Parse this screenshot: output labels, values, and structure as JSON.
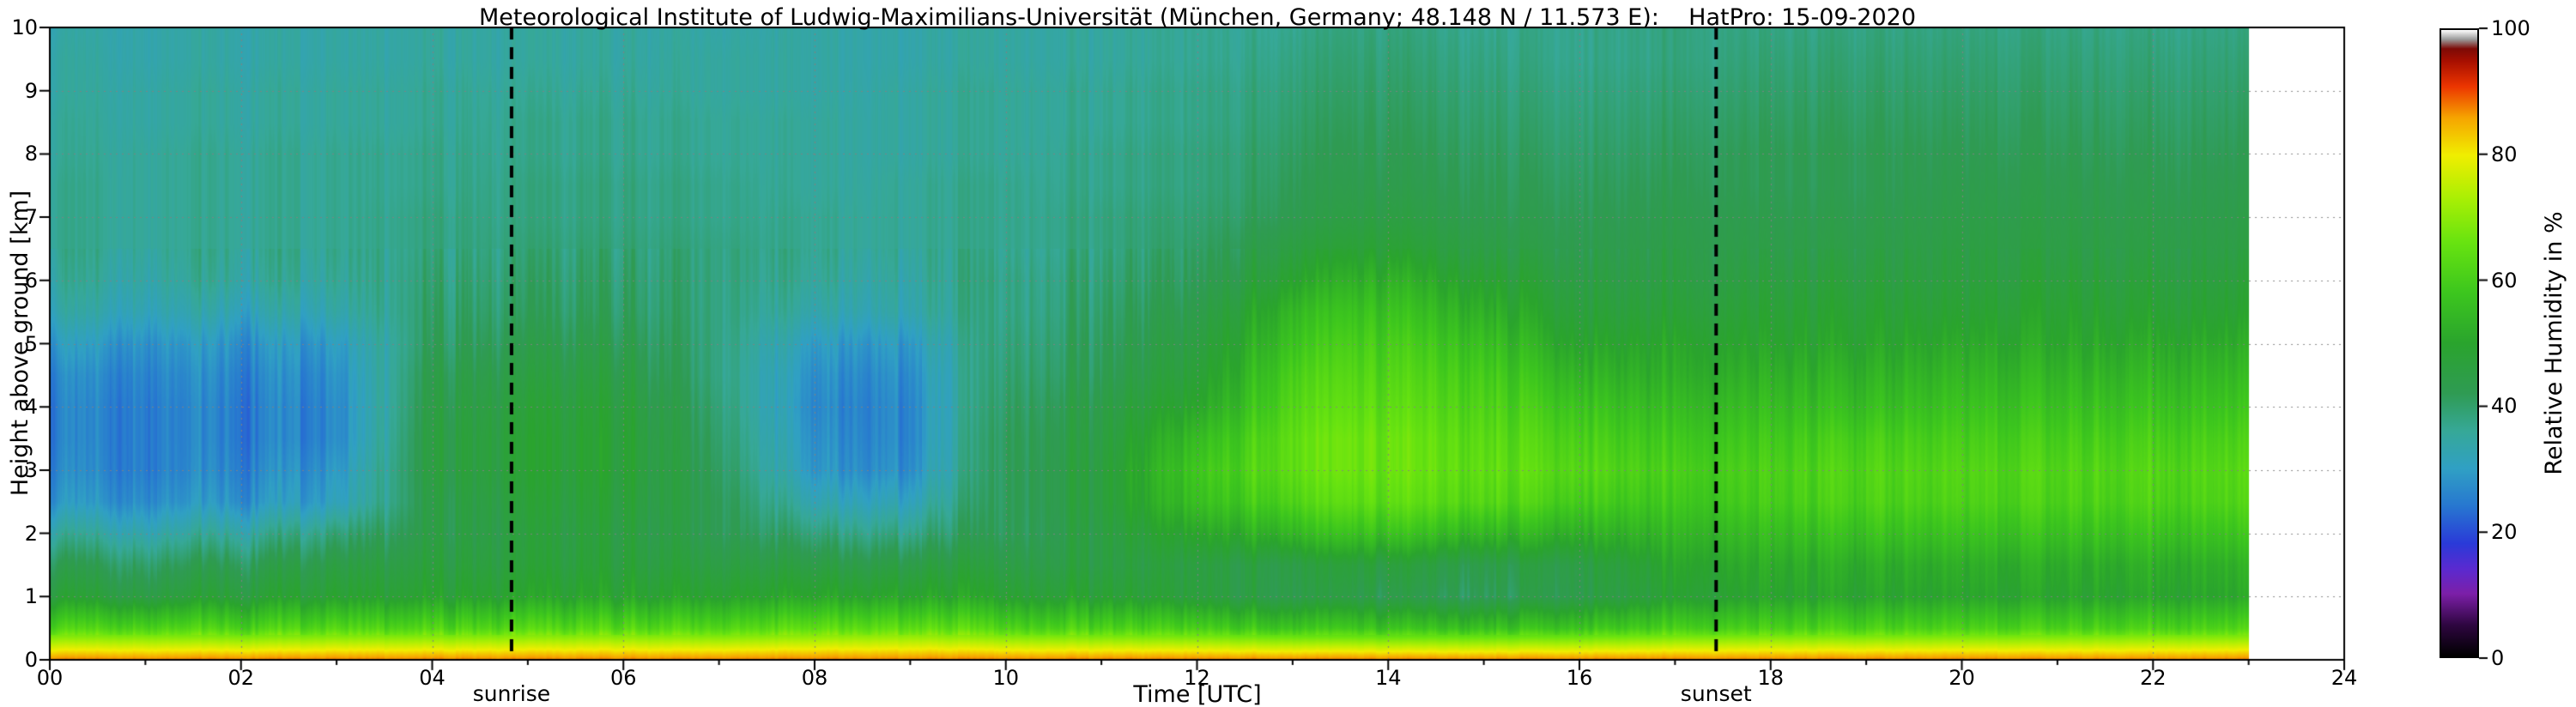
{
  "chart_data": {
    "type": "heatmap",
    "title": "Meteorological Institute of Ludwig-Maximilians-Universität (München, Germany; 48.148 N / 11.573 E):    HatPro: 15-09-2020",
    "xlabel": "Time [UTC]",
    "ylabel": "Height above ground [km]",
    "x_range": [
      0,
      24
    ],
    "y_range": [
      0,
      10
    ],
    "x_ticks": [
      0,
      2,
      4,
      6,
      8,
      10,
      12,
      14,
      16,
      18,
      20,
      22,
      24
    ],
    "x_tick_labels": [
      "00",
      "02",
      "04",
      "06",
      "08",
      "10",
      "12",
      "14",
      "16",
      "18",
      "20",
      "22",
      "24"
    ],
    "y_ticks": [
      0,
      1,
      2,
      3,
      4,
      5,
      6,
      7,
      8,
      9,
      10
    ],
    "y_tick_labels": [
      "0",
      "1",
      "2",
      "3",
      "4",
      "5",
      "6",
      "7",
      "8",
      "9",
      "10"
    ],
    "grid_lines": {
      "x_every": 2,
      "y_every": 1,
      "style": "dotted",
      "color": "#828282"
    },
    "data_end_time": 23,
    "annotations": {
      "sunrise": {
        "time": 4.83,
        "label": "sunrise",
        "style": "dashed",
        "color": "#000000"
      },
      "sunset": {
        "time": 17.43,
        "label": "sunset",
        "style": "dashed",
        "color": "#000000"
      }
    },
    "colorbar": {
      "label": "Relative Humidity in %",
      "range": [
        0,
        100
      ],
      "ticks": [
        0,
        20,
        40,
        60,
        80,
        100
      ],
      "stops": [
        {
          "v": 0,
          "color": "#000000"
        },
        {
          "v": 5,
          "color": "#2e0640"
        },
        {
          "v": 10,
          "color": "#7c1fa8"
        },
        {
          "v": 14,
          "color": "#5a2ad0"
        },
        {
          "v": 18,
          "color": "#2a3ad8"
        },
        {
          "v": 24,
          "color": "#2777d0"
        },
        {
          "v": 30,
          "color": "#30a0c4"
        },
        {
          "v": 36,
          "color": "#36a897"
        },
        {
          "v": 42,
          "color": "#2f9b53"
        },
        {
          "v": 50,
          "color": "#2aa42d"
        },
        {
          "v": 58,
          "color": "#3cc61e"
        },
        {
          "v": 66,
          "color": "#67e310"
        },
        {
          "v": 73,
          "color": "#a8ef04"
        },
        {
          "v": 80,
          "color": "#f0ee00"
        },
        {
          "v": 86,
          "color": "#f6a400"
        },
        {
          "v": 91,
          "color": "#ec3500"
        },
        {
          "v": 95,
          "color": "#a80f00"
        },
        {
          "v": 97,
          "color": "#7d0a06"
        },
        {
          "v": 98.5,
          "color": "#9a9a9a"
        },
        {
          "v": 100,
          "color": "#ffffff"
        }
      ]
    },
    "grid": {
      "times": [
        0,
        1,
        2,
        3,
        4,
        5,
        6,
        7,
        8,
        9,
        10,
        11,
        12,
        13,
        14,
        15,
        16,
        17,
        18,
        19,
        20,
        21,
        22,
        23
      ],
      "heights": [
        0,
        0.5,
        1,
        1.5,
        2,
        2.5,
        3,
        3.5,
        4,
        4.5,
        5,
        5.5,
        6,
        6.5,
        7,
        7.5,
        8,
        8.5,
        9,
        9.5,
        10
      ],
      "rh_values": [
        [
          88,
          88,
          88,
          88,
          88,
          88,
          88,
          88,
          88,
          88,
          88,
          88,
          88,
          88,
          88,
          88,
          88,
          88,
          88,
          88,
          88,
          88,
          88,
          88
        ],
        [
          62,
          62,
          61,
          62,
          62,
          63,
          63,
          62,
          64,
          65,
          62,
          61,
          60,
          58,
          57,
          57,
          58,
          60,
          61,
          61,
          61,
          61,
          62,
          62
        ],
        [
          48,
          46,
          47,
          48,
          49,
          50,
          50,
          49,
          50,
          51,
          49,
          48,
          46,
          44,
          43,
          42,
          44,
          48,
          50,
          50,
          50,
          50,
          51,
          51
        ],
        [
          43,
          41,
          42,
          44,
          46,
          47,
          47,
          45,
          44,
          45,
          45,
          45,
          45,
          45,
          46,
          44,
          45,
          50,
          52,
          52,
          52,
          52,
          53,
          53
        ],
        [
          36,
          34,
          35,
          38,
          44,
          46,
          46,
          42,
          38,
          38,
          42,
          45,
          50,
          55,
          57,
          55,
          53,
          54,
          56,
          57,
          57,
          57,
          58,
          58
        ],
        [
          29,
          28,
          28,
          30,
          44,
          47,
          47,
          42,
          32,
          32,
          42,
          46,
          56,
          62,
          64,
          63,
          60,
          58,
          60,
          61,
          61,
          61,
          62,
          62
        ],
        [
          27,
          26,
          26,
          28,
          45,
          48,
          48,
          41,
          28,
          28,
          42,
          46,
          58,
          65,
          66,
          65,
          63,
          60,
          61,
          62,
          62,
          62,
          63,
          63
        ],
        [
          26,
          26,
          25,
          26,
          45,
          48,
          48,
          40,
          27,
          27,
          42,
          45,
          55,
          65,
          66,
          64,
          61,
          58,
          59,
          60,
          60,
          60,
          61,
          61
        ],
        [
          26,
          26,
          25,
          26,
          44,
          47,
          47,
          39,
          26,
          27,
          41,
          44,
          50,
          63,
          64,
          62,
          58,
          55,
          56,
          56,
          57,
          57,
          58,
          58
        ],
        [
          27,
          27,
          26,
          27,
          43,
          45,
          45,
          38,
          27,
          28,
          40,
          42,
          47,
          61,
          62,
          60,
          54,
          52,
          53,
          53,
          54,
          54,
          55,
          55
        ],
        [
          30,
          29,
          28,
          29,
          41,
          43,
          43,
          38,
          29,
          30,
          39,
          41,
          45,
          58,
          60,
          57,
          50,
          50,
          50,
          50,
          51,
          51,
          52,
          52
        ],
        [
          34,
          33,
          32,
          33,
          40,
          41,
          41,
          38,
          33,
          34,
          38,
          40,
          43,
          55,
          57,
          53,
          47,
          47,
          48,
          48,
          48,
          49,
          49,
          49
        ],
        [
          36,
          35,
          35,
          35,
          39,
          40,
          40,
          38,
          35,
          35,
          38,
          39,
          41,
          50,
          53,
          49,
          45,
          45,
          46,
          46,
          46,
          47,
          47,
          47
        ],
        [
          37,
          36,
          36,
          36,
          38,
          39,
          39,
          38,
          36,
          36,
          37,
          38,
          40,
          46,
          48,
          45,
          43,
          44,
          44,
          44,
          45,
          45,
          45,
          45
        ],
        [
          37,
          36,
          36,
          36,
          38,
          38,
          38,
          37,
          36,
          36,
          37,
          38,
          39,
          43,
          45,
          43,
          42,
          43,
          43,
          43,
          44,
          44,
          44,
          44
        ],
        [
          37,
          36,
          36,
          36,
          37,
          38,
          38,
          37,
          35,
          36,
          37,
          37,
          38,
          42,
          43,
          42,
          41,
          42,
          42,
          42,
          43,
          43,
          43,
          43
        ],
        [
          36,
          36,
          36,
          36,
          37,
          37,
          37,
          36,
          35,
          35,
          36,
          37,
          38,
          41,
          42,
          41,
          40,
          41,
          42,
          42,
          42,
          42,
          42,
          42
        ],
        [
          36,
          35,
          35,
          35,
          36,
          37,
          37,
          36,
          35,
          35,
          36,
          36,
          37,
          40,
          41,
          40,
          39,
          40,
          41,
          41,
          41,
          41,
          41,
          41
        ],
        [
          35,
          35,
          35,
          35,
          36,
          36,
          36,
          35,
          34,
          35,
          36,
          36,
          37,
          39,
          40,
          39,
          38,
          39,
          40,
          40,
          40,
          40,
          40,
          40
        ],
        [
          35,
          34,
          34,
          34,
          35,
          35,
          35,
          35,
          34,
          34,
          35,
          35,
          36,
          38,
          39,
          38,
          37,
          38,
          39,
          39,
          39,
          39,
          39,
          39
        ],
        [
          34,
          34,
          34,
          34,
          35,
          35,
          35,
          34,
          34,
          34,
          35,
          35,
          36,
          37,
          38,
          37,
          37,
          38,
          38,
          38,
          38,
          38,
          38,
          38
        ]
      ]
    }
  }
}
